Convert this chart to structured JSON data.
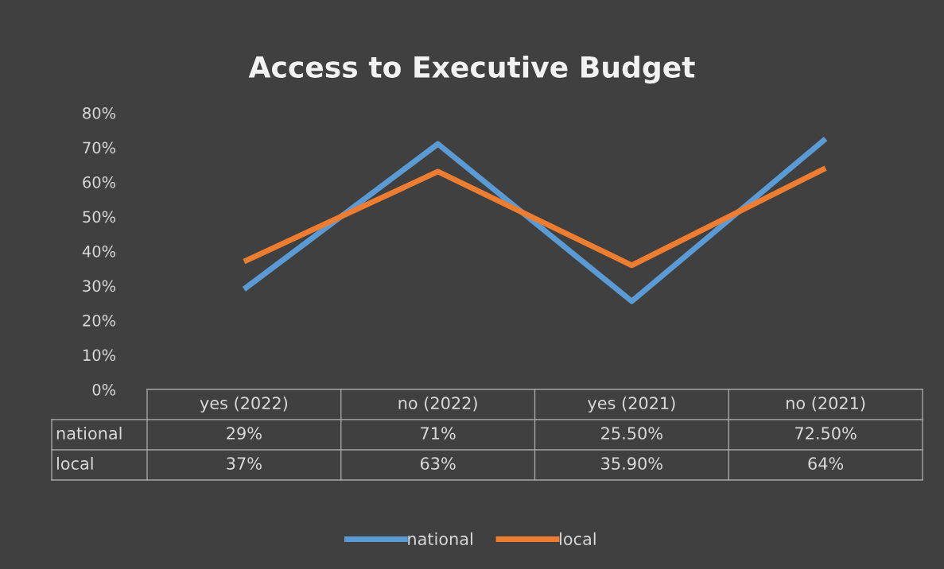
{
  "chart_data": {
    "type": "line",
    "title": "Access to Executive Budget",
    "categories": [
      "yes (2022)",
      "no (2022)",
      "yes (2021)",
      "no (2021)"
    ],
    "series": [
      {
        "name": "national",
        "color": "#5b9bd5",
        "values": [
          29,
          71,
          25.5,
          72.5
        ],
        "value_labels": [
          "29%",
          "71%",
          "25.50%",
          "72.50%"
        ]
      },
      {
        "name": "local",
        "color": "#ed7d31",
        "values": [
          37,
          63,
          35.9,
          64
        ],
        "value_labels": [
          "37%",
          "63%",
          "35.90%",
          "64%"
        ]
      }
    ],
    "ylim": [
      0,
      80
    ],
    "yticks": [
      {
        "value": 0,
        "label": "0%"
      },
      {
        "value": 10,
        "label": "10%"
      },
      {
        "value": 20,
        "label": "20%"
      },
      {
        "value": 30,
        "label": "30%"
      },
      {
        "value": 40,
        "label": "40%"
      },
      {
        "value": 50,
        "label": "50%"
      },
      {
        "value": 60,
        "label": "60%"
      },
      {
        "value": 70,
        "label": "70%"
      },
      {
        "value": 80,
        "label": "80%"
      }
    ],
    "grid": false,
    "legend": "bottom",
    "marker": "none",
    "line_style": "solid"
  }
}
